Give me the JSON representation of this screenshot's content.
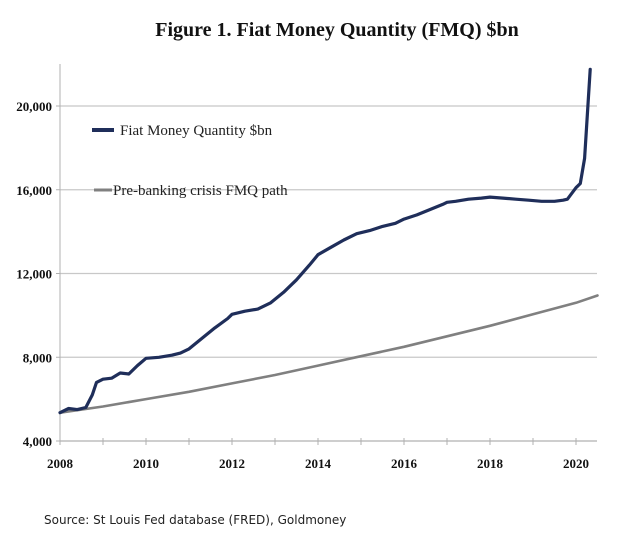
{
  "chart_data": {
    "type": "line",
    "title": "Figure 1. Fiat Money Quantity (FMQ)  $bn",
    "xlabel": "",
    "ylabel": "",
    "xlim": [
      2008,
      2020.5
    ],
    "ylim": [
      4000,
      22000
    ],
    "x_ticks": [
      "2008",
      "2010",
      "2012",
      "2014",
      "2016",
      "2018",
      "2020"
    ],
    "y_ticks": [
      "4,000",
      "8,000",
      "12,000",
      "16,000",
      "20,000"
    ],
    "grid": "horizontal",
    "legend_position": "top-left",
    "series": [
      {
        "name": "Fiat Money Quantity $bn",
        "color": "#1f2e5a",
        "x": [
          2008.0,
          2008.2,
          2008.4,
          2008.6,
          2008.75,
          2008.85,
          2009.0,
          2009.2,
          2009.4,
          2009.6,
          2009.8,
          2010.0,
          2010.3,
          2010.6,
          2010.8,
          2011.0,
          2011.3,
          2011.6,
          2011.9,
          2012.0,
          2012.3,
          2012.6,
          2012.9,
          2013.2,
          2013.5,
          2013.8,
          2014.0,
          2014.3,
          2014.6,
          2014.9,
          2015.2,
          2015.5,
          2015.8,
          2016.0,
          2016.3,
          2016.6,
          2016.9,
          2017.0,
          2017.2,
          2017.5,
          2017.8,
          2018.0,
          2018.3,
          2018.6,
          2018.9,
          2019.2,
          2019.5,
          2019.7,
          2019.8,
          2020.0,
          2020.1,
          2020.2,
          2020.33
        ],
        "values": [
          5350,
          5550,
          5500,
          5600,
          6200,
          6800,
          6950,
          7000,
          7250,
          7200,
          7600,
          7950,
          8000,
          8100,
          8200,
          8400,
          8900,
          9400,
          9850,
          10050,
          10200,
          10300,
          10600,
          11100,
          11700,
          12400,
          12900,
          13250,
          13600,
          13900,
          14050,
          14250,
          14400,
          14600,
          14800,
          15050,
          15300,
          15400,
          15450,
          15550,
          15600,
          15650,
          15600,
          15550,
          15500,
          15450,
          15450,
          15500,
          15550,
          16100,
          16300,
          17500,
          21750
        ]
      },
      {
        "name": "Pre-banking crisis FMQ path",
        "color": "#808080",
        "x": [
          2008.0,
          2009.0,
          2010.0,
          2011.0,
          2012.0,
          2013.0,
          2014.0,
          2015.0,
          2016.0,
          2017.0,
          2018.0,
          2019.0,
          2020.0,
          2020.5
        ],
        "values": [
          5350,
          5650,
          6000,
          6350,
          6750,
          7150,
          7600,
          8050,
          8500,
          9000,
          9500,
          10050,
          10600,
          10950
        ]
      }
    ],
    "annotations": []
  },
  "source": "Source: St Louis Fed  database (FRED), Goldmoney"
}
